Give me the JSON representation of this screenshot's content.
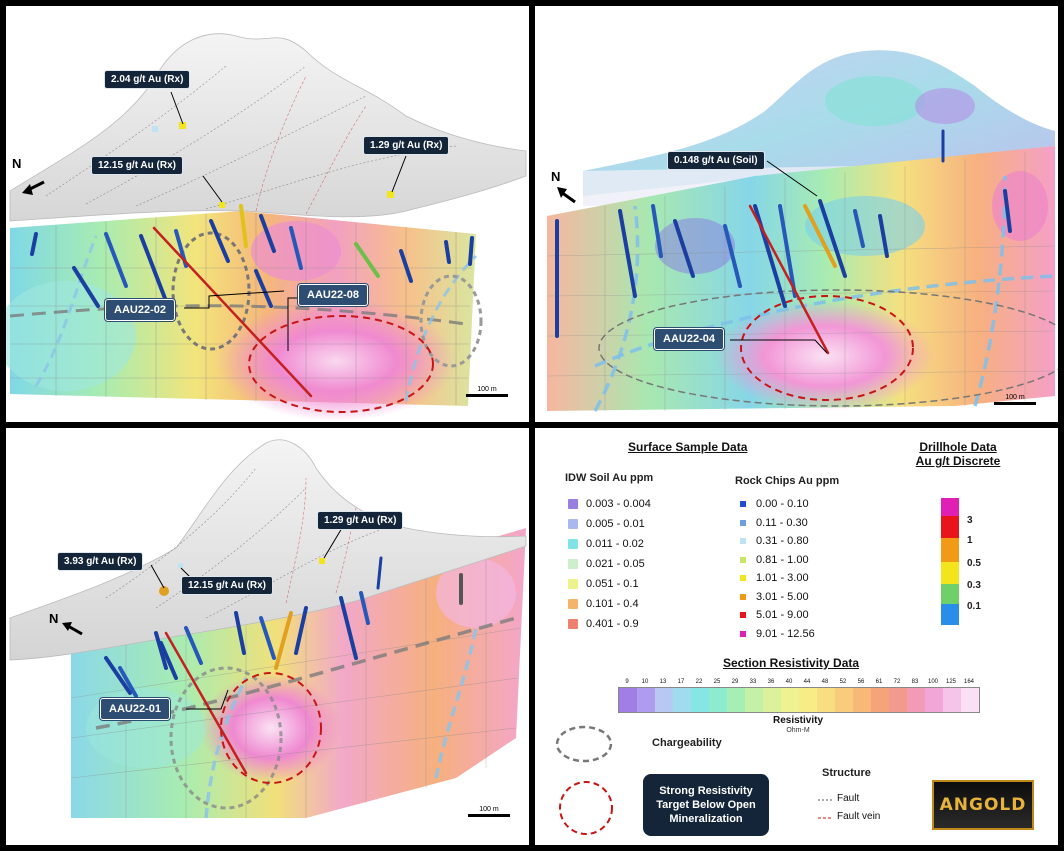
{
  "panel1": {
    "callouts": [
      "2.04 g/t Au (Rx)",
      "12.15 g/t Au (Rx)",
      "1.29 g/t Au (Rx)"
    ],
    "drillholes": [
      "AAU22-02",
      "AAU22-08"
    ],
    "north": "N",
    "scale": "100 m"
  },
  "panel2": {
    "callouts": [
      "0.148 g/t Au (Soil)"
    ],
    "drillholes": [
      "AAU22-04"
    ],
    "north": "N",
    "scale": "100 m"
  },
  "panel3": {
    "callouts": [
      "3.93 g/t Au (Rx)",
      "12.15 g/t Au (Rx)",
      "1.29 g/t Au (Rx)"
    ],
    "drillholes": [
      "AAU22-01"
    ],
    "north": "N",
    "scale": "100 m"
  },
  "legend": {
    "surface_title": "Surface Sample Data",
    "drillhole_title_1": "Drillhole Data",
    "drillhole_title_2": "Au g/t Discrete",
    "soil_title": "IDW Soil Au ppm",
    "soil": [
      {
        "label": "0.003 - 0.004",
        "color": "#9b7fe0"
      },
      {
        "label": "0.005 - 0.01",
        "color": "#a9b9ef"
      },
      {
        "label": "0.011 - 0.02",
        "color": "#7fe3e8"
      },
      {
        "label": "0.021 - 0.05",
        "color": "#cdf0cc"
      },
      {
        "label": "0.051 - 0.1",
        "color": "#eef28a"
      },
      {
        "label": "0.101 - 0.4",
        "color": "#f5b46b"
      },
      {
        "label": "0.401 - 0.9",
        "color": "#ee8070"
      }
    ],
    "rock_title": "Rock Chips Au ppm",
    "rock": [
      {
        "label": "0.00 - 0.10",
        "color": "#1f4fd0"
      },
      {
        "label": "0.11 - 0.30",
        "color": "#6d9ee0"
      },
      {
        "label": "0.31 - 0.80",
        "color": "#bfe3f2"
      },
      {
        "label": "0.81 - 1.00",
        "color": "#c7e96a"
      },
      {
        "label": "1.01 - 3.00",
        "color": "#f2e51c"
      },
      {
        "label": "3.01 - 5.00",
        "color": "#f09a15"
      },
      {
        "label": "5.01 - 9.00",
        "color": "#e8141a"
      },
      {
        "label": "9.01 - 12.56",
        "color": "#e01fb5"
      }
    ],
    "drillhole_values": [
      "3",
      "1",
      "0.5",
      "0.3",
      "0.1"
    ],
    "resistivity_title": "Section Resistivity Data",
    "resistivity_ticks": [
      "9",
      "10",
      "13",
      "17",
      "22",
      "25",
      "29",
      "33",
      "36",
      "40",
      "44",
      "48",
      "52",
      "56",
      "61",
      "72",
      "83",
      "100",
      "125",
      "164"
    ],
    "resistivity_label": "Resistivity",
    "resistivity_unit": "Ohm-M",
    "chargeability": "Chargeability",
    "target_line1": "Strong Resistivity",
    "target_line2": "Target Below Open",
    "target_line3": "Mineralization",
    "structure_title": "Structure",
    "fault": "Fault",
    "fault_vein": "Fault vein",
    "logo": "ANGOLD"
  }
}
